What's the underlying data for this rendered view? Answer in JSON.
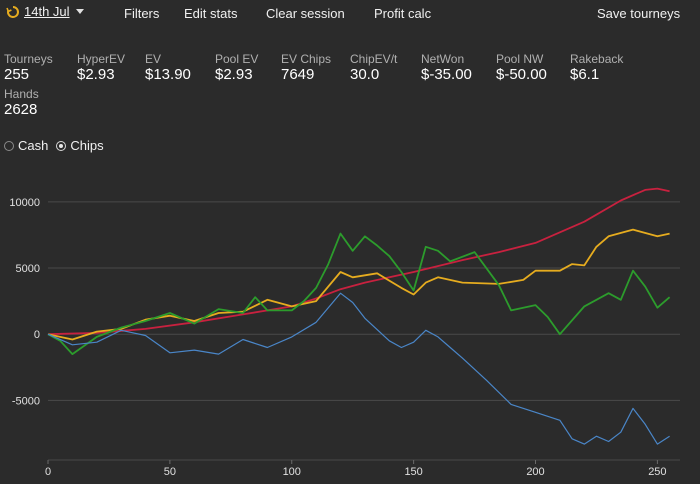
{
  "toolbar": {
    "date_label": "14th Jul",
    "sync_icon": "sync-icon",
    "items": [
      "Filters",
      "Edit stats",
      "Clear session",
      "Profit calc",
      "Save tourneys"
    ]
  },
  "stats": [
    {
      "label": "Tourneys",
      "value": "255"
    },
    {
      "label": "HyperEV",
      "value": "$2.93"
    },
    {
      "label": "EV",
      "value": "$13.90"
    },
    {
      "label": "Pool EV",
      "value": "$2.93"
    },
    {
      "label": "EV Chips",
      "value": "7649"
    },
    {
      "label": "ChipEV/t",
      "value": "30.0"
    },
    {
      "label": "NetWon",
      "value": "$-35.00"
    },
    {
      "label": "Pool NW",
      "value": "$-50.00"
    },
    {
      "label": "Rakeback",
      "value": "$6.1"
    },
    {
      "label": "Hands",
      "value": "2628"
    }
  ],
  "view_toggle": {
    "options": [
      "Cash",
      "Chips"
    ],
    "selected": "Chips"
  },
  "chart_data": {
    "type": "line",
    "xlim": [
      0,
      256
    ],
    "ylim": [
      -9500,
      11800
    ],
    "x_ticks": [
      0,
      50,
      100,
      150,
      200,
      250
    ],
    "y_ticks": [
      10000,
      5000,
      0,
      -5000
    ],
    "grid": "horizontal",
    "series": [
      {
        "color": "#c8213f",
        "points": [
          [
            0,
            0
          ],
          [
            20,
            100
          ],
          [
            40,
            400
          ],
          [
            60,
            900
          ],
          [
            80,
            1500
          ],
          [
            100,
            2100
          ],
          [
            110,
            2700
          ],
          [
            120,
            3400
          ],
          [
            130,
            3900
          ],
          [
            150,
            4700
          ],
          [
            170,
            5600
          ],
          [
            185,
            6200
          ],
          [
            200,
            6900
          ],
          [
            210,
            7700
          ],
          [
            220,
            8500
          ],
          [
            235,
            10100
          ],
          [
            245,
            10900
          ],
          [
            250,
            11000
          ],
          [
            255,
            10800
          ]
        ]
      },
      {
        "color": "#e6ac1f",
        "points": [
          [
            0,
            0
          ],
          [
            10,
            -400
          ],
          [
            20,
            200
          ],
          [
            30,
            400
          ],
          [
            40,
            1100
          ],
          [
            50,
            1400
          ],
          [
            60,
            1000
          ],
          [
            70,
            1600
          ],
          [
            80,
            1700
          ],
          [
            90,
            2600
          ],
          [
            100,
            2100
          ],
          [
            110,
            2500
          ],
          [
            120,
            4700
          ],
          [
            125,
            4300
          ],
          [
            135,
            4600
          ],
          [
            145,
            3500
          ],
          [
            150,
            3000
          ],
          [
            155,
            3900
          ],
          [
            160,
            4300
          ],
          [
            170,
            3900
          ],
          [
            185,
            3800
          ],
          [
            195,
            4100
          ],
          [
            200,
            4800
          ],
          [
            210,
            4800
          ],
          [
            215,
            5300
          ],
          [
            220,
            5200
          ],
          [
            225,
            6600
          ],
          [
            230,
            7400
          ],
          [
            240,
            7900
          ],
          [
            250,
            7400
          ],
          [
            255,
            7600
          ]
        ]
      },
      {
        "color": "#2c9c2c",
        "points": [
          [
            0,
            0
          ],
          [
            5,
            -500
          ],
          [
            10,
            -1500
          ],
          [
            20,
            -200
          ],
          [
            30,
            500
          ],
          [
            40,
            1000
          ],
          [
            50,
            1600
          ],
          [
            60,
            800
          ],
          [
            70,
            1900
          ],
          [
            80,
            1600
          ],
          [
            85,
            2800
          ],
          [
            90,
            1800
          ],
          [
            100,
            1800
          ],
          [
            105,
            2500
          ],
          [
            110,
            3500
          ],
          [
            115,
            5300
          ],
          [
            120,
            7600
          ],
          [
            125,
            6300
          ],
          [
            130,
            7400
          ],
          [
            135,
            6700
          ],
          [
            140,
            5900
          ],
          [
            145,
            4700
          ],
          [
            150,
            3300
          ],
          [
            155,
            6600
          ],
          [
            160,
            6300
          ],
          [
            165,
            5500
          ],
          [
            175,
            6200
          ],
          [
            185,
            3700
          ],
          [
            190,
            1800
          ],
          [
            200,
            2200
          ],
          [
            205,
            1300
          ],
          [
            210,
            0
          ],
          [
            220,
            2100
          ],
          [
            230,
            3100
          ],
          [
            235,
            2600
          ],
          [
            240,
            4800
          ],
          [
            245,
            3600
          ],
          [
            250,
            2000
          ],
          [
            255,
            2800
          ]
        ]
      },
      {
        "color": "#4a86c8",
        "points": [
          [
            0,
            0
          ],
          [
            10,
            -800
          ],
          [
            20,
            -600
          ],
          [
            30,
            300
          ],
          [
            40,
            -100
          ],
          [
            50,
            -1400
          ],
          [
            60,
            -1200
          ],
          [
            70,
            -1500
          ],
          [
            80,
            -400
          ],
          [
            90,
            -1000
          ],
          [
            100,
            -200
          ],
          [
            110,
            900
          ],
          [
            120,
            3100
          ],
          [
            125,
            2400
          ],
          [
            130,
            1200
          ],
          [
            140,
            -500
          ],
          [
            145,
            -1000
          ],
          [
            150,
            -600
          ],
          [
            155,
            300
          ],
          [
            160,
            -200
          ],
          [
            165,
            -1000
          ],
          [
            170,
            -1800
          ],
          [
            180,
            -3500
          ],
          [
            190,
            -5300
          ],
          [
            200,
            -5900
          ],
          [
            210,
            -6500
          ],
          [
            215,
            -7900
          ],
          [
            220,
            -8300
          ],
          [
            225,
            -7700
          ],
          [
            230,
            -8100
          ],
          [
            235,
            -7400
          ],
          [
            240,
            -5600
          ],
          [
            245,
            -6800
          ],
          [
            250,
            -8300
          ],
          [
            255,
            -7700
          ]
        ]
      }
    ]
  }
}
